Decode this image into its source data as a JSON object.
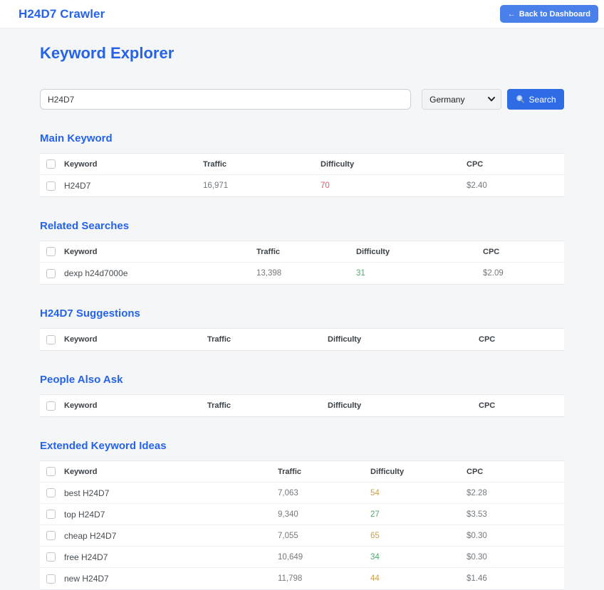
{
  "header": {
    "title": "H24D7 Crawler",
    "back_arrow": "←",
    "back_label": "Back to Dashboard"
  },
  "page": {
    "title": "Keyword Explorer"
  },
  "search": {
    "query": "H24D7",
    "country": "Germany",
    "button_label": "Search",
    "button_icon": "magnifier-icon"
  },
  "columns": [
    "Keyword",
    "Traffic",
    "Difficulty",
    "CPC"
  ],
  "sections": [
    {
      "id": "main-keyword",
      "title": "Main Keyword",
      "rows": [
        {
          "keyword": "H24D7",
          "traffic": "16,971",
          "difficulty": "70",
          "level": "high",
          "cpc": "$2.40"
        }
      ]
    },
    {
      "id": "related-searches",
      "title": "Related Searches",
      "rows": [
        {
          "keyword": "dexp h24d7000e",
          "traffic": "13,398",
          "difficulty": "31",
          "level": "low",
          "cpc": "$2.09"
        }
      ]
    },
    {
      "id": "h24d7-suggestions",
      "title": "H24D7 Suggestions",
      "rows": []
    },
    {
      "id": "people-also-ask",
      "title": "People Also Ask",
      "rows": []
    },
    {
      "id": "extended-keyword-ideas",
      "title": "Extended Keyword Ideas",
      "rows": [
        {
          "keyword": "best H24D7",
          "traffic": "7,063",
          "difficulty": "54",
          "level": "medium",
          "cpc": "$2.28"
        },
        {
          "keyword": "top H24D7",
          "traffic": "9,340",
          "difficulty": "27",
          "level": "low",
          "cpc": "$3.53"
        },
        {
          "keyword": "cheap H24D7",
          "traffic": "7,055",
          "difficulty": "65",
          "level": "medium",
          "cpc": "$0.30"
        },
        {
          "keyword": "free H24D7",
          "traffic": "10,649",
          "difficulty": "34",
          "level": "low",
          "cpc": "$0.30"
        },
        {
          "keyword": "new H24D7",
          "traffic": "11,798",
          "difficulty": "44",
          "level": "medium",
          "cpc": "$1.46"
        }
      ]
    }
  ],
  "colors": {
    "accent": "#2563eb",
    "header_button": "#4a80e9",
    "search_button": "#2e6be4",
    "difficulty_low": "#4fad6d",
    "difficulty_medium": "#cfa144",
    "difficulty_high": "#dd5661"
  }
}
